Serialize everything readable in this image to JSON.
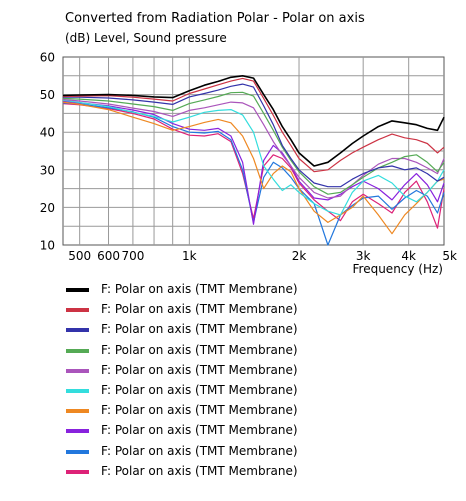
{
  "chart_data": {
    "type": "line",
    "title": "Converted from Radiation Polar - Polar on axis",
    "ylabel": "(dB)  Level, Sound pressure",
    "xlabel": "Frequency  (Hz)",
    "xscale": "log",
    "xlim": [
      450,
      5000
    ],
    "ylim": [
      10,
      60
    ],
    "grid": true,
    "legend_position": "bottom",
    "y_ticks": [
      {
        "value": 10,
        "label": "10"
      },
      {
        "value": 20,
        "label": "20"
      },
      {
        "value": 30,
        "label": "30"
      },
      {
        "value": 40,
        "label": "40"
      },
      {
        "value": 50,
        "label": "50"
      },
      {
        "value": 60,
        "label": "60"
      }
    ],
    "x_ticks": [
      {
        "value": 500,
        "label": "500"
      },
      {
        "value": 600,
        "label": "600"
      },
      {
        "value": 700,
        "label": "700"
      },
      {
        "value": 1000,
        "label": "1k"
      },
      {
        "value": 2000,
        "label": "2k"
      },
      {
        "value": 3000,
        "label": "3k"
      },
      {
        "value": 4000,
        "label": "4k"
      },
      {
        "value": 5000,
        "label": "5k"
      }
    ],
    "x_minor_gridlines": [
      800,
      900
    ],
    "x": [
      450,
      500,
      600,
      700,
      800,
      900,
      1000,
      1100,
      1200,
      1300,
      1400,
      1500,
      1600,
      1700,
      1800,
      1900,
      2000,
      2200,
      2400,
      2600,
      2800,
      3000,
      3300,
      3600,
      3900,
      4200,
      4500,
      4800,
      5000
    ],
    "series": [
      {
        "name": "F: Polar on axis  (TMT Membrane)",
        "color": "#000000",
        "values": [
          49.8,
          49.9,
          50.0,
          49.8,
          49.4,
          49.2,
          51.0,
          52.5,
          53.5,
          54.6,
          55.0,
          54.4,
          50.0,
          46.0,
          41.5,
          38.0,
          34.5,
          31.0,
          32.0,
          34.5,
          37.0,
          39.0,
          41.5,
          43.0,
          42.5,
          42.0,
          41.0,
          40.5,
          44.0
        ]
      },
      {
        "name": "F: Polar on axis  (TMT Membrane)",
        "color": "#cc3344",
        "values": [
          49.5,
          49.6,
          49.7,
          49.3,
          48.8,
          48.3,
          50.3,
          51.5,
          52.6,
          53.6,
          54.3,
          53.6,
          49.0,
          44.5,
          40.0,
          36.5,
          33.0,
          29.5,
          30.0,
          32.5,
          34.5,
          36.0,
          38.0,
          39.5,
          38.5,
          38.0,
          37.0,
          34.5,
          36.0
        ]
      },
      {
        "name": "F: Polar on axis  (TMT Membrane)",
        "color": "#3333aa",
        "values": [
          49.3,
          49.3,
          49.1,
          48.6,
          48.0,
          47.4,
          49.4,
          50.3,
          51.2,
          52.2,
          52.8,
          52.0,
          47.0,
          42.0,
          36.5,
          33.0,
          30.0,
          26.5,
          25.5,
          25.5,
          27.5,
          29.0,
          30.5,
          31.0,
          30.0,
          30.5,
          29.0,
          27.0,
          28.0
        ]
      },
      {
        "name": "F: Polar on axis  (TMT Membrane)",
        "color": "#55aa55",
        "values": [
          49.0,
          48.8,
          48.3,
          47.5,
          46.8,
          45.8,
          47.6,
          48.6,
          49.5,
          50.5,
          50.6,
          49.6,
          45.0,
          40.5,
          36.0,
          32.5,
          29.5,
          25.5,
          23.5,
          24.0,
          26.0,
          28.0,
          30.5,
          32.0,
          33.5,
          34.0,
          32.0,
          29.5,
          32.0
        ]
      },
      {
        "name": "F: Polar on axis  (TMT Membrane)",
        "color": "#aa55bb",
        "values": [
          48.7,
          48.3,
          47.5,
          46.4,
          45.5,
          44.2,
          45.8,
          46.5,
          47.3,
          48.0,
          47.8,
          46.5,
          42.0,
          37.5,
          34.0,
          31.0,
          28.0,
          24.0,
          22.5,
          23.0,
          26.0,
          28.5,
          31.5,
          33.0,
          33.0,
          32.0,
          30.5,
          29.0,
          33.0
        ]
      },
      {
        "name": "F: Polar on axis  (TMT Membrane)",
        "color": "#33dddd",
        "values": [
          48.5,
          47.9,
          46.8,
          45.3,
          44.2,
          42.7,
          44.0,
          45.3,
          45.8,
          46.0,
          44.6,
          40.0,
          31.0,
          27.5,
          24.5,
          26.0,
          24.0,
          21.0,
          19.0,
          18.0,
          24.0,
          27.0,
          28.5,
          26.5,
          23.0,
          21.5,
          24.0,
          27.0,
          30.0
        ]
      },
      {
        "name": "F: Polar on axis  (TMT Membrane)",
        "color": "#ee8822",
        "values": [
          48.0,
          47.4,
          46.0,
          44.0,
          42.3,
          40.5,
          41.5,
          42.6,
          43.4,
          42.5,
          39.0,
          33.0,
          25.0,
          29.0,
          31.0,
          29.5,
          25.0,
          19.0,
          16.0,
          18.0,
          20.0,
          23.0,
          18.0,
          13.0,
          18.0,
          21.0,
          24.0,
          27.0,
          27.5
        ]
      },
      {
        "name": "F: Polar on axis  (TMT Membrane)",
        "color": "#8822dd",
        "values": [
          48.2,
          47.8,
          47.0,
          45.9,
          44.7,
          42.3,
          40.8,
          40.5,
          41.0,
          39.0,
          32.0,
          15.5,
          32.5,
          36.5,
          34.5,
          31.0,
          27.0,
          22.5,
          22.0,
          23.5,
          25.5,
          27.0,
          25.0,
          22.0,
          26.0,
          29.0,
          26.0,
          21.5,
          26.5
        ]
      },
      {
        "name": "F: Polar on axis  (TMT Membrane)",
        "color": "#2277dd",
        "values": [
          47.8,
          47.5,
          46.5,
          45.4,
          44.0,
          41.5,
          40.0,
          39.8,
          40.2,
          38.0,
          30.0,
          16.0,
          28.0,
          32.0,
          30.5,
          28.0,
          25.0,
          21.0,
          10.0,
          18.0,
          20.5,
          22.5,
          23.0,
          19.5,
          22.5,
          24.5,
          23.0,
          18.5,
          24.0
        ]
      },
      {
        "name": "F: Polar on axis  (TMT Membrane)",
        "color": "#dd2277",
        "values": [
          47.6,
          47.3,
          46.3,
          45.0,
          43.5,
          40.8,
          39.2,
          39.0,
          39.6,
          37.5,
          29.0,
          17.0,
          31.0,
          34.0,
          33.0,
          30.5,
          26.5,
          22.0,
          19.0,
          16.5,
          21.5,
          23.5,
          21.0,
          18.5,
          24.0,
          27.0,
          21.5,
          14.5,
          25.0
        ]
      }
    ]
  }
}
